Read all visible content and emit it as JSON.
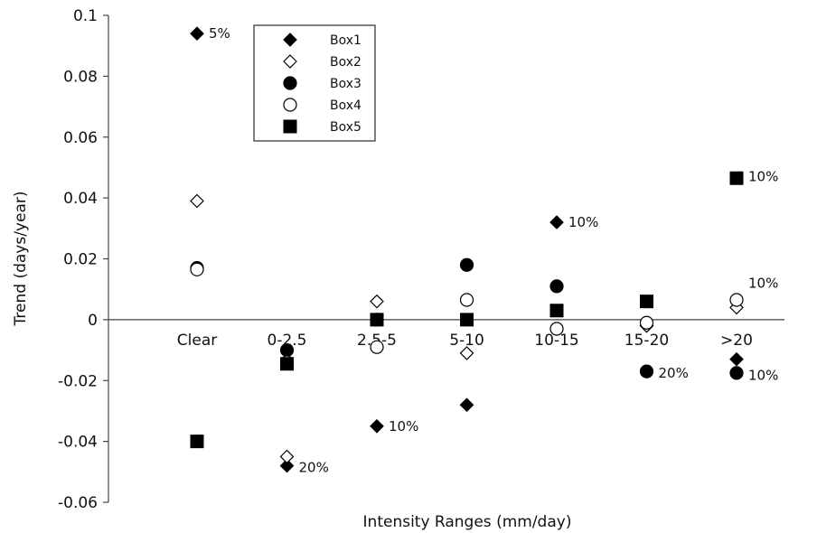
{
  "chart_data": {
    "type": "scatter",
    "title": "",
    "xlabel": "Intensity Ranges (mm/day)",
    "ylabel": "Trend (days/year)",
    "categories": [
      "Clear",
      "0-2.5",
      "2.5-5",
      "5-10",
      "10-15",
      "15-20",
      ">20"
    ],
    "ylim": [
      -0.06,
      0.1
    ],
    "yticks": [
      "0.1",
      "0.08",
      "0.06",
      "0.04",
      "0.02",
      "0",
      "-0.02",
      "-0.04",
      "-0.06"
    ],
    "ytick_values": [
      0.1,
      0.08,
      0.06,
      0.04,
      0.02,
      0,
      -0.02,
      -0.04,
      -0.06
    ],
    "grid": false,
    "legend_position": "top-left",
    "series": [
      {
        "name": "Box1",
        "marker": "diamond-filled",
        "values": [
          0.094,
          -0.048,
          -0.035,
          -0.028,
          0.032,
          -0.002,
          -0.013
        ]
      },
      {
        "name": "Box2",
        "marker": "diamond-open",
        "values": [
          0.039,
          -0.045,
          0.006,
          -0.011,
          -0.003,
          -0.002,
          0.004
        ]
      },
      {
        "name": "Box3",
        "marker": "circle-filled",
        "values": [
          0.017,
          -0.01,
          0.0,
          0.018,
          0.011,
          -0.017,
          -0.0175
        ]
      },
      {
        "name": "Box4",
        "marker": "circle-open",
        "values": [
          0.0165,
          -0.014,
          -0.009,
          0.0065,
          -0.003,
          -0.001,
          0.0065
        ]
      },
      {
        "name": "Box5",
        "marker": "square-filled",
        "values": [
          -0.04,
          -0.0145,
          0.0,
          0.0,
          0.003,
          0.006,
          0.0465
        ]
      }
    ],
    "annotations": [
      {
        "text": "5%",
        "category": "Clear",
        "y": 0.094
      },
      {
        "text": "20%",
        "category": "0-2.5",
        "y": -0.0485
      },
      {
        "text": "10%",
        "category": "2.5-5",
        "y": -0.035
      },
      {
        "text": "10%",
        "category": "10-15",
        "y": 0.032
      },
      {
        "text": "20%",
        "category": "15-20",
        "y": -0.0175
      },
      {
        "text": "10%",
        "category": ">20",
        "y": 0.047
      },
      {
        "text": "10%",
        "category": ">20",
        "y": 0.012
      },
      {
        "text": "10%",
        "category": ">20",
        "y": -0.0183
      }
    ]
  }
}
